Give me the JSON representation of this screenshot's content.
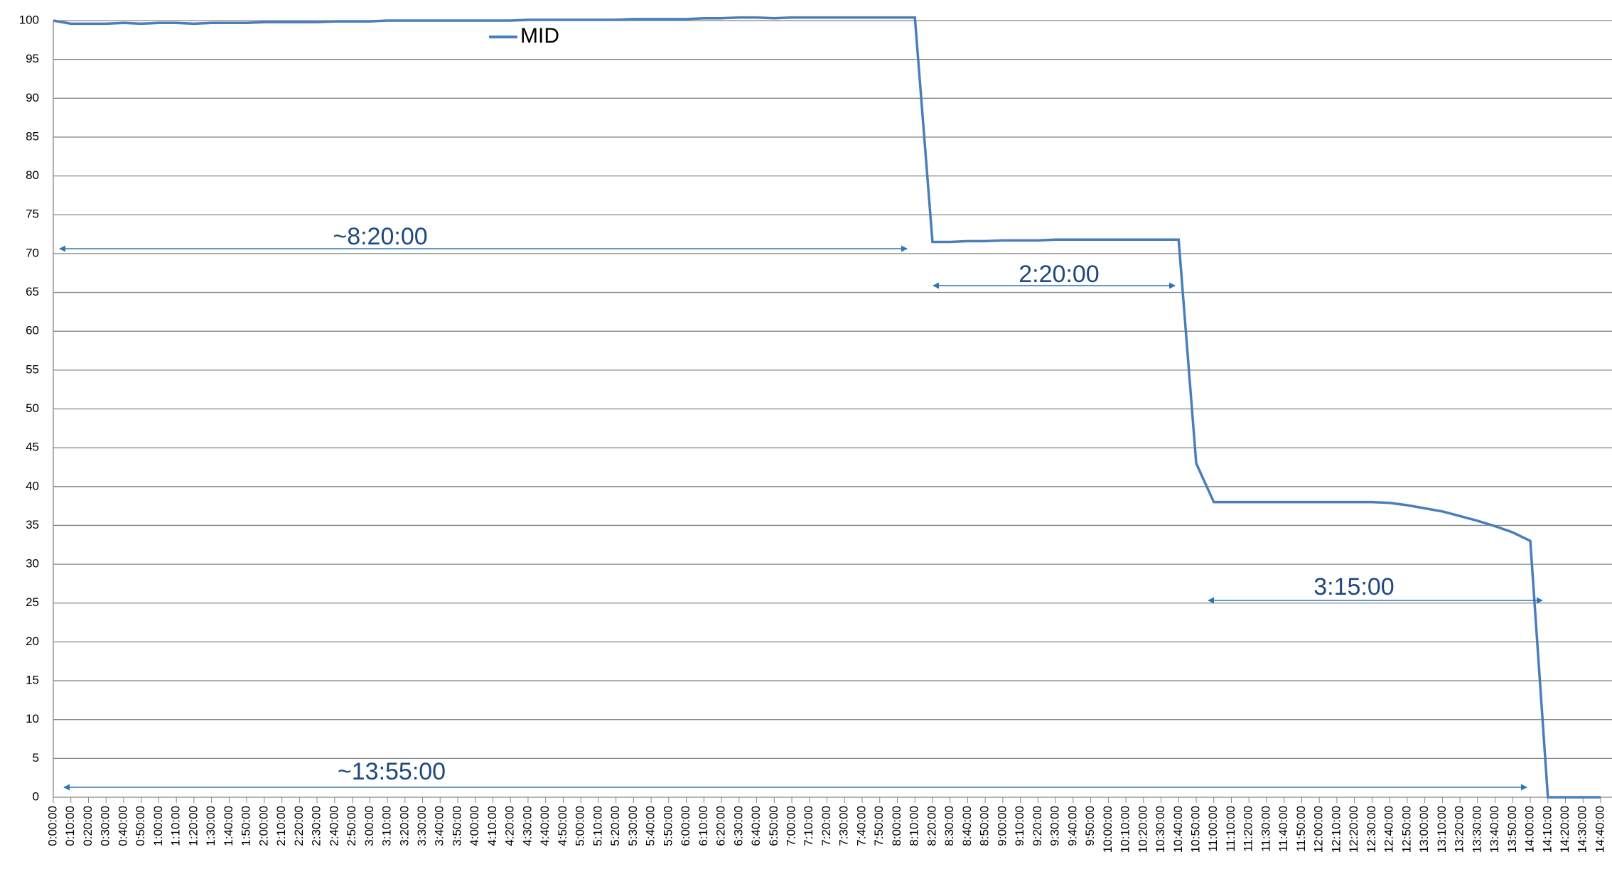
{
  "chart_data": {
    "type": "line",
    "categories": [
      "0:00:00",
      "0:10:00",
      "0:20:00",
      "0:30:00",
      "0:40:00",
      "0:50:00",
      "1:00:00",
      "1:10:00",
      "1:20:00",
      "1:30:00",
      "1:40:00",
      "1:50:00",
      "2:00:00",
      "2:10:00",
      "2:20:00",
      "2:30:00",
      "2:40:00",
      "2:50:00",
      "3:00:00",
      "3:10:00",
      "3:20:00",
      "3:30:00",
      "3:40:00",
      "3:50:00",
      "4:00:00",
      "4:10:00",
      "4:20:00",
      "4:30:00",
      "4:40:00",
      "4:50:00",
      "5:00:00",
      "5:10:00",
      "5:20:00",
      "5:30:00",
      "5:40:00",
      "5:50:00",
      "6:00:00",
      "6:10:00",
      "6:20:00",
      "6:30:00",
      "6:40:00",
      "6:50:00",
      "7:00:00",
      "7:10:00",
      "7:20:00",
      "7:30:00",
      "7:40:00",
      "7:50:00",
      "8:00:00",
      "8:10:00",
      "8:20:00",
      "8:30:00",
      "8:40:00",
      "8:50:00",
      "9:00:00",
      "9:10:00",
      "9:20:00",
      "9:30:00",
      "9:40:00",
      "9:50:00",
      "10:00:00",
      "10:10:00",
      "10:20:00",
      "10:30:00",
      "10:40:00",
      "10:50:00",
      "11:00:00",
      "11:10:00",
      "11:20:00",
      "11:30:00",
      "11:40:00",
      "11:50:00",
      "12:00:00",
      "12:10:00",
      "12:20:00",
      "12:30:00",
      "12:40:00",
      "12:50:00",
      "13:00:00",
      "13:10:00",
      "13:20:00",
      "13:30:00",
      "13:40:00",
      "13:50:00",
      "14:00:00",
      "14:10:00",
      "14:20:00",
      "14:30:00",
      "14:40:00"
    ],
    "series": [
      {
        "name": "MID",
        "color": "#4a7ebb",
        "values": [
          100,
          99.6,
          99.6,
          99.6,
          99.7,
          99.6,
          99.7,
          99.7,
          99.6,
          99.7,
          99.7,
          99.7,
          99.8,
          99.8,
          99.8,
          99.8,
          99.9,
          99.9,
          99.9,
          100,
          100,
          100,
          100,
          100,
          100,
          100,
          100,
          100.1,
          100.1,
          100.1,
          100.1,
          100.1,
          100.1,
          100.2,
          100.2,
          100.2,
          100.2,
          100.3,
          100.3,
          100.4,
          100.4,
          100.3,
          100.4,
          100.4,
          100.4,
          100.4,
          100.4,
          100.4,
          100.4,
          100.4,
          71.5,
          71.5,
          71.6,
          71.6,
          71.7,
          71.7,
          71.7,
          71.8,
          71.8,
          71.8,
          71.8,
          71.8,
          71.8,
          71.8,
          71.8,
          43,
          38,
          38,
          38,
          38,
          38,
          38,
          38,
          38,
          38,
          38,
          37.9,
          37.6,
          37.2,
          36.8,
          36.2,
          35.6,
          34.9,
          34.1,
          33,
          0,
          0,
          0,
          0
        ]
      }
    ],
    "ylim": [
      0,
      100
    ],
    "yticks": [
      0,
      5,
      10,
      15,
      20,
      25,
      30,
      35,
      40,
      45,
      50,
      55,
      60,
      65,
      70,
      75,
      80,
      85,
      90,
      95,
      100
    ],
    "grid": true,
    "annotations": [
      "~8:20:00",
      "2:20:00",
      "3:15:00",
      "~13:55:00"
    ]
  }
}
